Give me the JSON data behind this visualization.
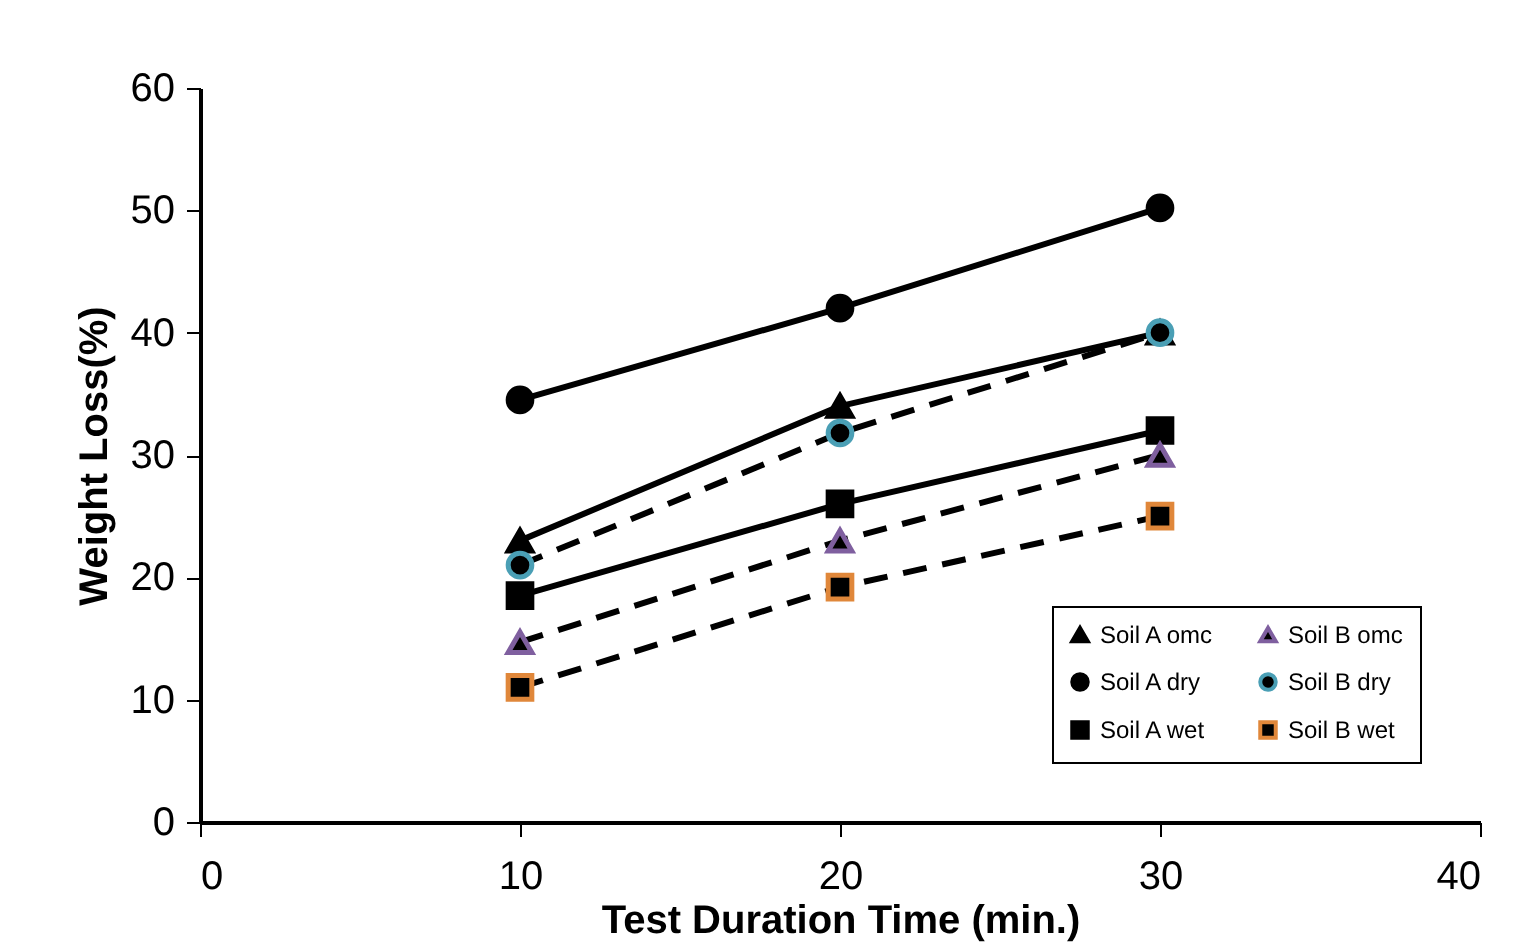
{
  "chart_data": {
    "type": "line",
    "xlabel": "Test Duration Time (min.)",
    "ylabel": "Weight Loss(%)",
    "x": [
      10,
      20,
      30
    ],
    "xlim": [
      0,
      40
    ],
    "xticks": [
      0,
      10,
      20,
      30,
      40
    ],
    "ylim": [
      0,
      60
    ],
    "yticks": [
      0,
      10,
      20,
      30,
      40,
      50,
      60
    ],
    "grid": false,
    "legend": "bottom right",
    "series": [
      {
        "name": "Soil A omc",
        "color": "#000000",
        "marker": "triangle",
        "line_style": "solid",
        "values": [
          23,
          34,
          40
        ]
      },
      {
        "name": "Soil A dry",
        "color": "#000000",
        "marker": "circle",
        "line_style": "solid",
        "values": [
          34.5,
          42,
          50.2
        ]
      },
      {
        "name": "Soil A wet",
        "color": "#000000",
        "marker": "square",
        "line_style": "solid",
        "values": [
          18.5,
          26,
          32
        ]
      },
      {
        "name": "Soil B omc",
        "color": "#000000",
        "colors": [
          "#7f5f9f",
          "#7f5f9f",
          "#7f5f9f"
        ],
        "marker": "triangle",
        "line_style": "dashed",
        "values": [
          14.7,
          23,
          30
        ]
      },
      {
        "name": "Soil B dry",
        "color": "#000000",
        "colors": [
          "#4a9fb5",
          "#4a9fb5",
          "#4a9fb5"
        ],
        "marker": "circle",
        "line_style": "dashed",
        "values": [
          21,
          31.8,
          40
        ]
      },
      {
        "name": "Soil B wet",
        "color": "#000000",
        "colors": [
          "#e0873a",
          "#e0873a",
          "#e0873a"
        ],
        "marker": "square",
        "line_style": "dashed",
        "values": [
          11,
          19.2,
          25
        ]
      }
    ]
  }
}
